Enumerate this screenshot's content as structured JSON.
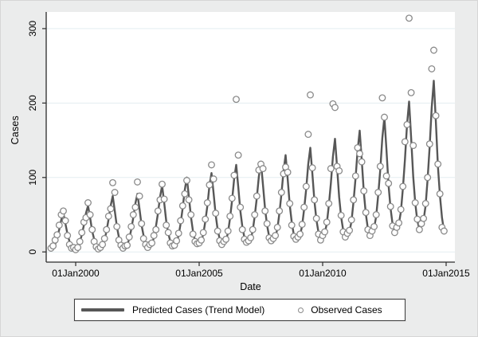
{
  "figure": {
    "background": "#ebecec",
    "plot_background": "#ffffff",
    "grid_color": "#e3edf0",
    "axis_color": "#2b2b2b",
    "line_color": "#575757",
    "marker_stroke": "#8a8a8a",
    "marker_fill": "#ffffff"
  },
  "chart_data": {
    "type": "line",
    "title": "",
    "xlabel": "Date",
    "ylabel": "Cases",
    "x_start": "Jan 1999",
    "x_end": "Dec 2014",
    "frequency": "monthly",
    "y_ticks": [
      0,
      100,
      200,
      300
    ],
    "y_tick_labels": [
      "0",
      "100",
      "200",
      "300"
    ],
    "ylim": [
      0,
      320
    ],
    "x_tick_labels": [
      "01Jan2000",
      "01Jan2005",
      "01Jan2010",
      "01Jan2015"
    ],
    "x_tick_month_indices": [
      12,
      72,
      132,
      192
    ],
    "grid": "horizontal-only",
    "legend_position": "bottom-center",
    "legend": [
      {
        "label": "Predicted Cases (Trend Model)",
        "marker": "line"
      },
      {
        "label": "Observed Cases",
        "marker": "circle"
      }
    ],
    "series": [
      {
        "name": "Predicted Cases (Trend Model)",
        "type": "line",
        "values_by_year": [
          {
            "year": 1999,
            "values": [
              4,
              5,
              10,
              19,
              30,
              43,
              52,
              38,
              24,
              14,
              7,
              4
            ]
          },
          {
            "year": 2000,
            "values": [
              5,
              7,
              13,
              23,
              36,
              52,
              62,
              46,
              28,
              17,
              9,
              5
            ]
          },
          {
            "year": 2001,
            "values": [
              6,
              9,
              16,
              28,
              44,
              62,
              75,
              55,
              34,
              20,
              11,
              6
            ]
          },
          {
            "year": 2002,
            "values": [
              7,
              10,
              17,
              30,
              46,
              65,
              78,
              58,
              36,
              22,
              12,
              7
            ]
          },
          {
            "year": 2003,
            "values": [
              9,
              11,
              19,
              34,
              52,
              74,
              89,
              66,
              41,
              25,
              14,
              9
            ]
          },
          {
            "year": 2004,
            "values": [
              10,
              13,
              22,
              38,
              59,
              83,
              100,
              74,
              47,
              28,
              15,
              10
            ]
          },
          {
            "year": 2005,
            "values": [
              11,
              14,
              24,
              41,
              62,
              89,
              106,
              79,
              50,
              30,
              17,
              11
            ]
          },
          {
            "year": 2006,
            "values": [
              12,
              15,
              26,
              45,
              69,
              98,
              117,
              87,
              55,
              34,
              19,
              12
            ]
          },
          {
            "year": 2007,
            "values": [
              14,
              17,
              28,
              48,
              72,
              101,
              121,
              90,
              58,
              36,
              21,
              14
            ]
          },
          {
            "year": 2008,
            "values": [
              16,
              20,
              31,
              52,
              78,
              109,
              130,
              98,
              63,
              40,
              23,
              16
            ]
          },
          {
            "year": 2009,
            "values": [
              18,
              22,
              35,
              57,
              84,
              118,
              140,
              105,
              68,
              43,
              26,
              18
            ]
          },
          {
            "year": 2010,
            "values": [
              21,
              25,
              38,
              62,
              92,
              128,
              152,
              114,
              74,
              47,
              29,
              21
            ]
          },
          {
            "year": 2011,
            "values": [
              23,
              27,
              41,
              67,
              99,
              137,
              163,
              123,
              80,
              51,
              31,
              23
            ]
          },
          {
            "year": 2012,
            "values": [
              27,
              32,
              48,
              76,
              110,
              153,
              181,
              137,
              90,
              59,
              37,
              27
            ]
          },
          {
            "year": 2013,
            "values": [
              31,
              37,
              54,
              85,
              124,
              171,
              202,
              153,
              101,
              66,
              42,
              31
            ]
          },
          {
            "year": 2014,
            "values": [
              36,
              42,
              62,
              97,
              141,
              194,
              230,
              175,
              115,
              76,
              46,
              28
            ]
          }
        ]
      },
      {
        "name": "Observed Cases",
        "type": "scatter",
        "values_by_year": [
          {
            "year": 1999,
            "values": [
              5,
              8,
              16,
              23,
              36,
              50,
              55,
              42,
              22,
              10,
              5,
              6
            ]
          },
          {
            "year": 2000,
            "values": [
              3,
              6,
              14,
              26,
              40,
              46,
              66,
              50,
              30,
              14,
              7,
              4
            ]
          },
          {
            "year": 2001,
            "values": [
              6,
              10,
              18,
              30,
              48,
              58,
              93,
              80,
              34,
              16,
              9,
              5
            ]
          },
          {
            "year": 2002,
            "values": [
              8,
              9,
              20,
              34,
              50,
              60,
              94,
              75,
              38,
              18,
              10,
              6
            ]
          },
          {
            "year": 2003,
            "values": [
              10,
              12,
              22,
              30,
              55,
              70,
              91,
              71,
              36,
              26,
              12,
              8
            ]
          },
          {
            "year": 2004,
            "values": [
              9,
              15,
              25,
              42,
              62,
              78,
              96,
              70,
              50,
              24,
              14,
              11
            ]
          },
          {
            "year": 2005,
            "values": [
              12,
              16,
              26,
              44,
              66,
              90,
              117,
              98,
              52,
              28,
              15,
              10
            ]
          },
          {
            "year": 2006,
            "values": [
              14,
              17,
              28,
              48,
              72,
              103,
              205,
              130,
              60,
              30,
              17,
              13
            ]
          },
          {
            "year": 2007,
            "values": [
              15,
              19,
              30,
              50,
              75,
              110,
              118,
              112,
              55,
              38,
              19,
              15
            ]
          },
          {
            "year": 2008,
            "values": [
              18,
              22,
              33,
              55,
              80,
              105,
              114,
              107,
              65,
              36,
              21,
              17
            ]
          },
          {
            "year": 2009,
            "values": [
              20,
              24,
              37,
              60,
              88,
              158,
              211,
              113,
              70,
              45,
              24,
              16
            ]
          },
          {
            "year": 2010,
            "values": [
              22,
              27,
              40,
              65,
              112,
              199,
              194,
              115,
              109,
              49,
              27,
              20
            ]
          },
          {
            "year": 2011,
            "values": [
              25,
              29,
              43,
              70,
              102,
              140,
              132,
              121,
              82,
              53,
              30,
              22
            ]
          },
          {
            "year": 2012,
            "values": [
              28,
              34,
              50,
              80,
              115,
              207,
              181,
              102,
              92,
              61,
              35,
              26
            ]
          },
          {
            "year": 2013,
            "values": [
              33,
              39,
              57,
              88,
              148,
              171,
              314,
              214,
              143,
              66,
              44,
              30
            ]
          },
          {
            "year": 2014,
            "values": [
              38,
              45,
              65,
              100,
              145,
              246,
              271,
              183,
              118,
              78,
              33,
              28
            ]
          }
        ]
      }
    ]
  }
}
